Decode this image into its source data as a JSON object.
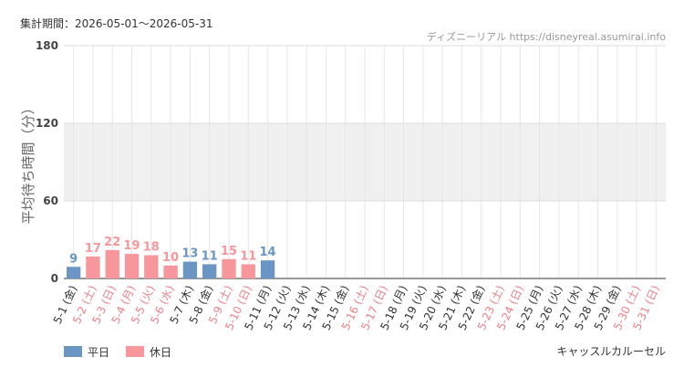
{
  "header": {
    "period": "集計期間：2026-05-01～2026-05-31",
    "source": "ディズニーリアル https://disneyreal.asumirai.info",
    "attraction": "キャッスルカルーセル"
  },
  "chart_data": {
    "type": "bar",
    "y_label": "平均待ち時間（分）",
    "categories": [
      "5-1 (金)",
      "5-2 (土)",
      "5-3 (日)",
      "5-4 (月)",
      "5-5 (火)",
      "5-6 (水)",
      "5-7 (木)",
      "5-8 (金)",
      "5-9 (土)",
      "5-10 (日)",
      "5-11 (月)",
      "5-12 (火)",
      "5-13 (水)",
      "5-14 (木)",
      "5-15 (金)",
      "5-16 (土)",
      "5-17 (日)",
      "5-18 (月)",
      "5-19 (火)",
      "5-20 (水)",
      "5-21 (木)",
      "5-22 (金)",
      "5-23 (土)",
      "5-24 (日)",
      "5-25 (月)",
      "5-26 (火)",
      "5-27 (水)",
      "5-28 (木)",
      "5-29 (金)",
      "5-30 (土)",
      "5-31 (日)"
    ],
    "label_colors": [
      "#333333",
      "#f07f86",
      "#f07f86",
      "#f07f86",
      "#f07f86",
      "#f07f86",
      "#333333",
      "#333333",
      "#f07f86",
      "#f07f86",
      "#333333",
      "#333333",
      "#333333",
      "#333333",
      "#333333",
      "#f07f86",
      "#f07f86",
      "#333333",
      "#333333",
      "#333333",
      "#333333",
      "#333333",
      "#f07f86",
      "#f07f86",
      "#333333",
      "#333333",
      "#333333",
      "#333333",
      "#333333",
      "#f07f86",
      "#f07f86"
    ],
    "series": [
      {
        "name": "平日",
        "color": "#6b96c3",
        "values": [
          9,
          null,
          null,
          null,
          null,
          null,
          13,
          11,
          null,
          null,
          14,
          null,
          null,
          null,
          null,
          null,
          null,
          null,
          null,
          null,
          null,
          null,
          null,
          null,
          null,
          null,
          null,
          null,
          null,
          null,
          null
        ]
      },
      {
        "name": "休日",
        "color": "#f7969b",
        "values": [
          null,
          17,
          22,
          19,
          18,
          10,
          null,
          null,
          15,
          11,
          null,
          null,
          null,
          null,
          null,
          null,
          null,
          null,
          null,
          null,
          null,
          null,
          null,
          null,
          null,
          null,
          null,
          null,
          null,
          null,
          null
        ]
      }
    ],
    "ylim": [
      0,
      180
    ],
    "yticks": [
      0,
      60,
      120,
      180
    ],
    "grid": true,
    "band_fill": "#f0f0f0"
  }
}
